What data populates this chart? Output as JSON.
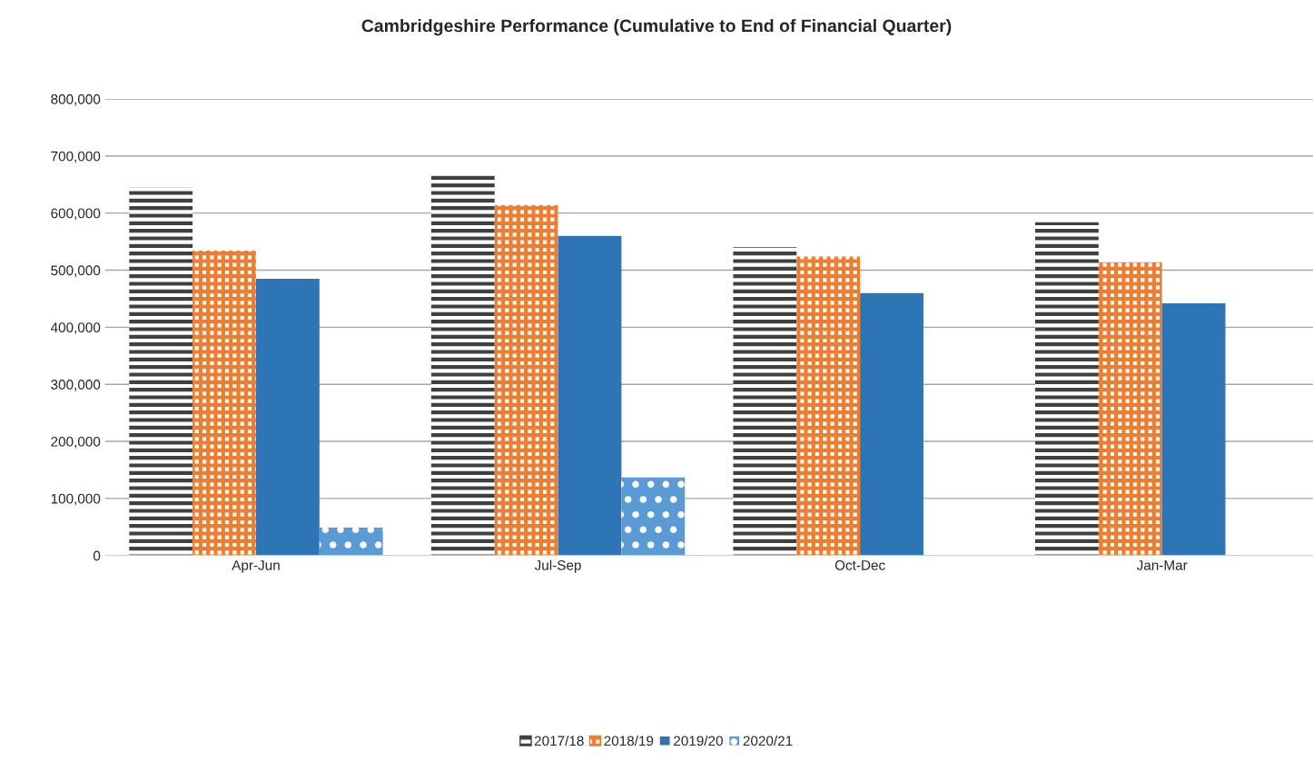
{
  "chart_data": {
    "type": "bar",
    "title": "Cambridgeshire Performance (Cumulative to End of Financial Quarter)",
    "categories": [
      "Apr-Jun",
      "Jul-Sep",
      "Oct-Dec",
      "Jan-Mar"
    ],
    "series": [
      {
        "name": "2017/18",
        "color": "#404040",
        "values": [
          645000,
          671000,
          540000,
          584000
        ]
      },
      {
        "name": "2018/19",
        "color": "#ed7d31",
        "values": [
          534000,
          614000,
          524000,
          514000
        ]
      },
      {
        "name": "2019/20",
        "color": "#2e75b6",
        "values": [
          485000,
          560000,
          460000,
          442000
        ]
      },
      {
        "name": "2020/21",
        "color": "#5b9bd5",
        "values": [
          49000,
          137000,
          null,
          null
        ]
      }
    ],
    "ylim": [
      0,
      800000
    ],
    "yticks": [
      {
        "value": 0,
        "label": "0"
      },
      {
        "value": 100000,
        "label": "100,000"
      },
      {
        "value": 200000,
        "label": "200,000"
      },
      {
        "value": 300000,
        "label": "300,000"
      },
      {
        "value": 400000,
        "label": "400,000"
      },
      {
        "value": 500000,
        "label": "500,000"
      },
      {
        "value": 600000,
        "label": "600,000"
      },
      {
        "value": 700000,
        "label": "700,000"
      },
      {
        "value": 800000,
        "label": "800,000"
      }
    ],
    "grid": "y",
    "legend": "bottom"
  }
}
